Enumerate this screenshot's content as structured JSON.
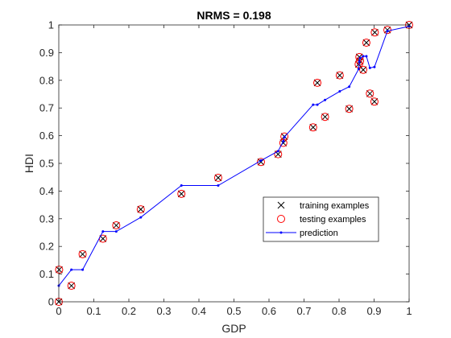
{
  "chart_data": {
    "type": "scatter",
    "title": "NRMS = 0.198",
    "xlabel": "GDP",
    "ylabel": "HDI",
    "xlim": [
      0,
      1
    ],
    "ylim": [
      0,
      1
    ],
    "xticks": [
      "0",
      "0.1",
      "0.2",
      "0.3",
      "0.4",
      "0.5",
      "0.6",
      "0.7",
      "0.8",
      "0.9",
      "1"
    ],
    "yticks": [
      "0",
      "0.1",
      "0.2",
      "0.3",
      "0.4",
      "0.5",
      "0.6",
      "0.7",
      "0.8",
      "0.9",
      "1"
    ],
    "grid": false,
    "legend_position": "lower-right",
    "series": [
      {
        "name": "training examples",
        "marker": "x",
        "color": "#000000",
        "x": [
          0.0,
          0.001,
          0.036,
          0.068,
          0.126,
          0.164,
          0.234,
          0.35,
          0.455,
          0.577,
          0.626,
          0.641,
          0.644,
          0.726,
          0.738,
          0.76,
          0.802,
          0.829,
          0.856,
          0.858,
          0.86,
          0.869,
          0.878,
          0.888,
          0.901,
          0.902,
          0.938,
          1.0
        ],
        "y": [
          0.0,
          0.116,
          0.058,
          0.172,
          0.228,
          0.276,
          0.334,
          0.39,
          0.448,
          0.505,
          0.533,
          0.574,
          0.597,
          0.63,
          0.791,
          0.668,
          0.818,
          0.697,
          0.858,
          0.884,
          0.87,
          0.838,
          0.936,
          0.752,
          0.723,
          0.973,
          0.982,
          1.0
        ]
      },
      {
        "name": "testing examples",
        "marker": "o",
        "color": "#ff0000",
        "x": [
          0.0,
          0.001,
          0.036,
          0.068,
          0.126,
          0.164,
          0.234,
          0.35,
          0.455,
          0.577,
          0.626,
          0.641,
          0.644,
          0.726,
          0.738,
          0.76,
          0.802,
          0.829,
          0.856,
          0.858,
          0.86,
          0.869,
          0.878,
          0.888,
          0.901,
          0.902,
          0.938,
          1.0
        ],
        "y": [
          0.0,
          0.116,
          0.058,
          0.172,
          0.228,
          0.276,
          0.334,
          0.39,
          0.448,
          0.505,
          0.533,
          0.574,
          0.597,
          0.63,
          0.791,
          0.668,
          0.818,
          0.697,
          0.858,
          0.884,
          0.87,
          0.838,
          0.936,
          0.752,
          0.723,
          0.973,
          0.982,
          1.0
        ]
      },
      {
        "name": "prediction",
        "marker": ".",
        "line": true,
        "color": "#0000ff",
        "x": [
          0.0,
          0.036,
          0.068,
          0.126,
          0.164,
          0.234,
          0.35,
          0.455,
          0.577,
          0.626,
          0.641,
          0.644,
          0.726,
          0.738,
          0.76,
          0.802,
          0.829,
          0.856,
          0.858,
          0.86,
          0.869,
          0.878,
          0.888,
          0.901,
          0.938,
          1.0
        ],
        "y": [
          0.058,
          0.116,
          0.116,
          0.254,
          0.254,
          0.305,
          0.42,
          0.42,
          0.51,
          0.544,
          0.58,
          0.595,
          0.712,
          0.712,
          0.729,
          0.76,
          0.777,
          0.841,
          0.868,
          0.88,
          0.887,
          0.887,
          0.845,
          0.848,
          0.978,
          0.995
        ]
      }
    ]
  }
}
